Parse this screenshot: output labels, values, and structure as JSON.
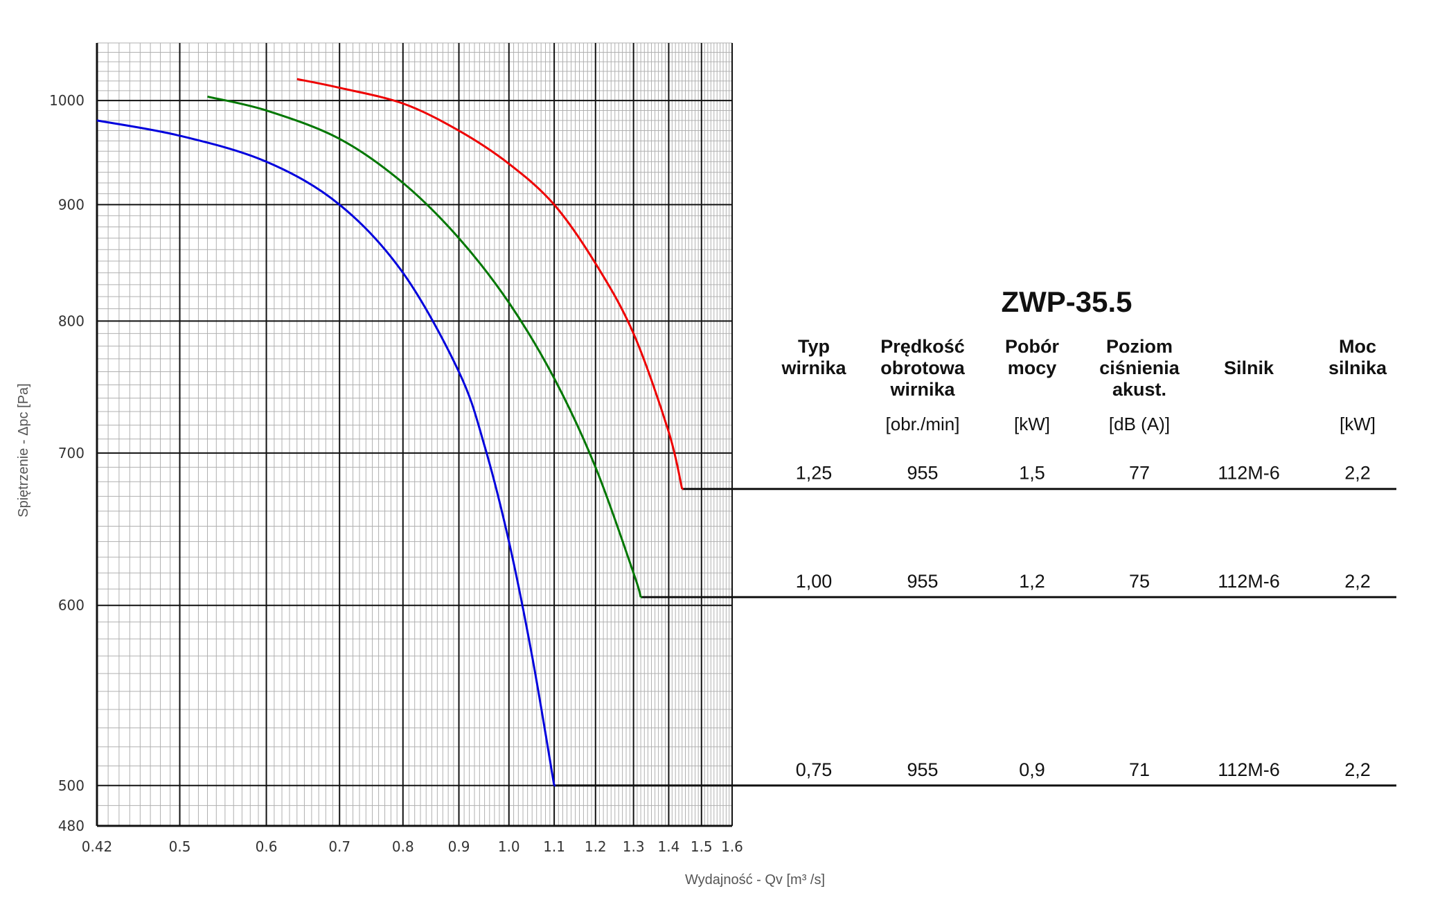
{
  "chart_data": {
    "type": "line",
    "title": "ZWP-35.5",
    "xlabel": "Wydajność - Qv [m³ /s]",
    "ylabel": "Spiętrzenie - Δpc [Pa]",
    "x_scale": "log",
    "y_scale": "log",
    "xlim": [
      0.42,
      1.6
    ],
    "ylim": [
      480,
      1060
    ],
    "x_ticks": [
      "0.42",
      "0.5",
      "0.6",
      "0.7",
      "0.8",
      "0.9",
      "1.0",
      "1.1",
      "1.2",
      "1.3",
      "1.4",
      "1.5",
      "1.6"
    ],
    "y_ticks": [
      "480",
      "500",
      "600",
      "700",
      "800",
      "900",
      "1000"
    ],
    "grid": true,
    "series": [
      {
        "color": "#0000dd",
        "x": [
          0.42,
          0.5,
          0.6,
          0.7,
          0.8,
          0.9,
          0.95,
          1.0,
          1.05,
          1.1
        ],
        "y": [
          980,
          965,
          940,
          900,
          840,
          760,
          705,
          640,
          570,
          500
        ]
      },
      {
        "color": "#007700",
        "x": [
          0.53,
          0.6,
          0.7,
          0.8,
          0.9,
          1.0,
          1.1,
          1.2,
          1.3,
          1.32
        ],
        "y": [
          1004,
          990,
          962,
          920,
          870,
          815,
          755,
          690,
          620,
          605
        ]
      },
      {
        "color": "#ee0000",
        "x": [
          0.64,
          0.7,
          0.8,
          0.9,
          1.0,
          1.1,
          1.2,
          1.3,
          1.4,
          1.44
        ],
        "y": [
          1022,
          1013,
          997,
          970,
          938,
          900,
          848,
          790,
          715,
          675
        ]
      }
    ]
  },
  "table": {
    "headers": [
      {
        "lines": [
          "Typ",
          "wirnika"
        ],
        "unit": ""
      },
      {
        "lines": [
          "Prędkość",
          "obrotowa",
          "wirnika"
        ],
        "unit": "[obr./min]"
      },
      {
        "lines": [
          "Pobór",
          "mocy"
        ],
        "unit": "[kW]"
      },
      {
        "lines": [
          "Poziom",
          "ciśnienia",
          "akust."
        ],
        "unit": "[dB (A)]"
      },
      {
        "lines": [
          "Silnik"
        ],
        "unit": ""
      },
      {
        "lines": [
          "Moc",
          "silnika"
        ],
        "unit": "[kW]"
      }
    ],
    "rows": [
      {
        "series": 2,
        "cells": [
          "1,25",
          "955",
          "1,5",
          "77",
          "112M-6",
          "2,2"
        ]
      },
      {
        "series": 1,
        "cells": [
          "1,00",
          "955",
          "1,2",
          "75",
          "112M-6",
          "2,2"
        ]
      },
      {
        "series": 0,
        "cells": [
          "0,75",
          "955",
          "0,9",
          "71",
          "112M-6",
          "2,2"
        ]
      }
    ]
  }
}
